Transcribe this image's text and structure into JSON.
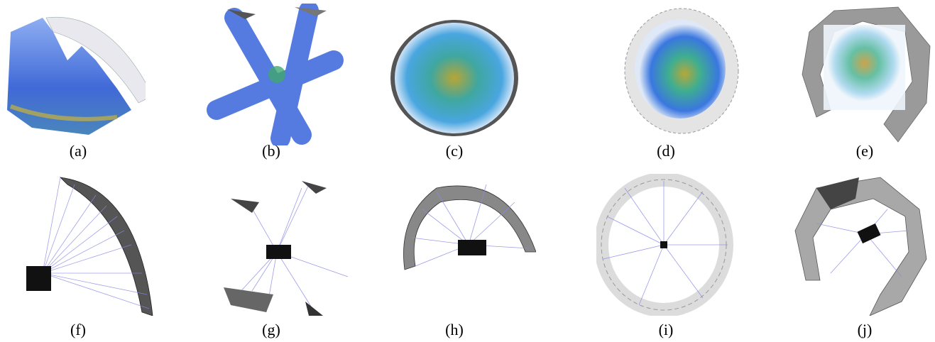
{
  "figure": {
    "captions": [
      "(a)",
      "(b)",
      "(c)",
      "(d)",
      "(e)",
      "(f)",
      "(g)",
      "(h)",
      "(i)",
      "(j)"
    ],
    "colors": {
      "background": "#ffffff",
      "points_deep": "#1a40c8",
      "points_mid": "#3fa7d6",
      "points_hot": "#c9b23a",
      "ray": "#8a8ae6",
      "mesh_light": "#e8e8ec",
      "mesh_dark": "#2b2b2b",
      "camera": "#111111"
    },
    "panels": [
      {
        "name": "panel-a",
        "kind": "point-cloud-surface"
      },
      {
        "name": "panel-b",
        "kind": "point-cloud-cross"
      },
      {
        "name": "panel-c",
        "kind": "point-cloud-sphere"
      },
      {
        "name": "panel-d",
        "kind": "voxel-sphere"
      },
      {
        "name": "panel-e",
        "kind": "mesh-sphere-colored"
      },
      {
        "name": "panel-f",
        "kind": "rays-mesh-dark"
      },
      {
        "name": "panel-g",
        "kind": "rays-fragments"
      },
      {
        "name": "panel-h",
        "kind": "rays-ring"
      },
      {
        "name": "panel-i",
        "kind": "rays-voxel-ring"
      },
      {
        "name": "panel-j",
        "kind": "rays-mesh-light"
      }
    ]
  }
}
